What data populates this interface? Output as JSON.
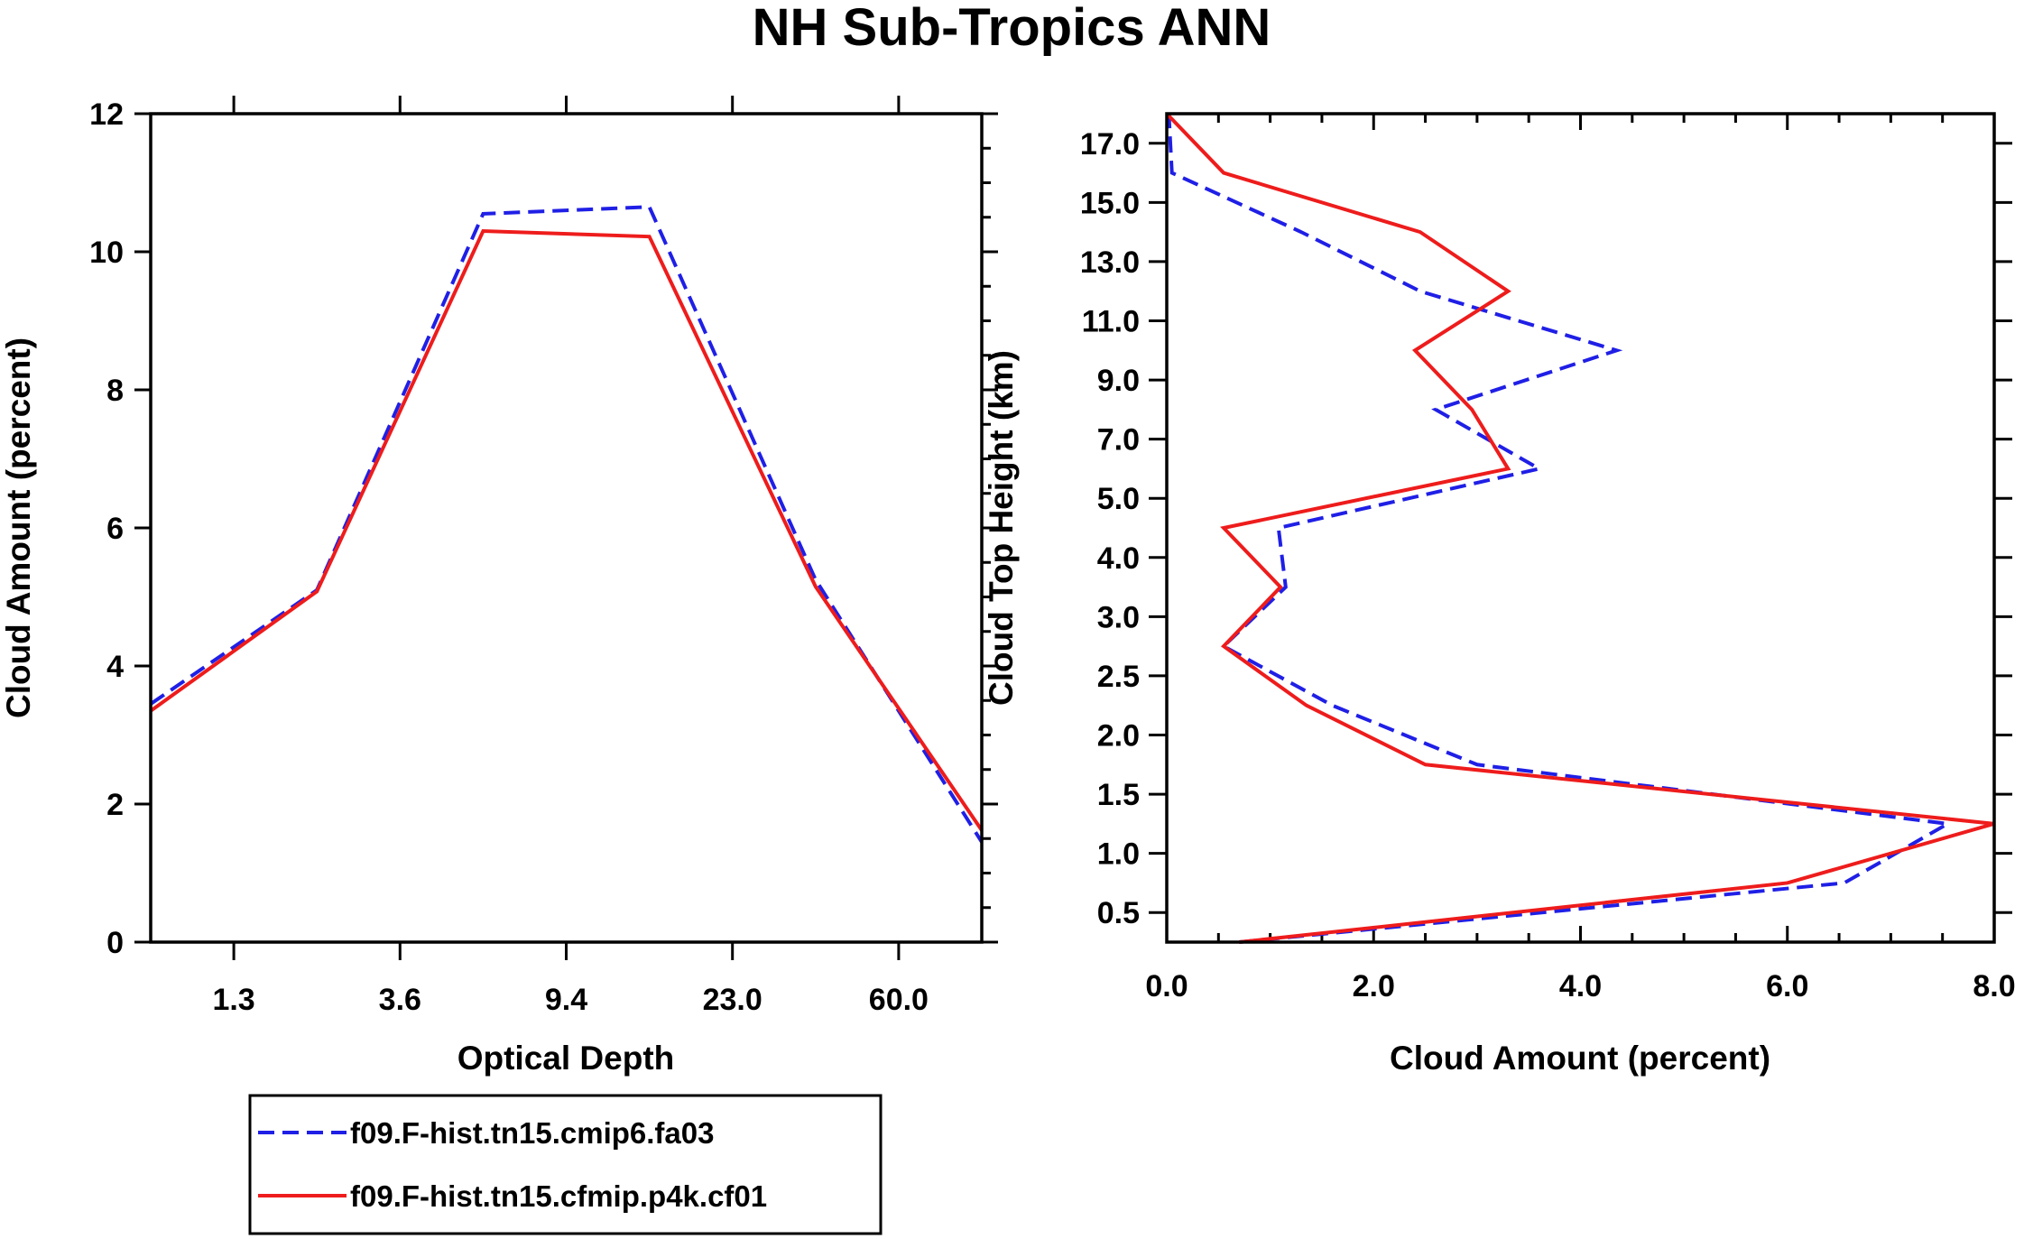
{
  "title": "NH Sub-Tropics ANN",
  "legend": {
    "entries": [
      {
        "label": "f09.F-hist.tn15.cmip6.fa03",
        "color": "#1f1fe6",
        "style": "dashed"
      },
      {
        "label": "f09.F-hist.tn15.cfmip.p4k.cf01",
        "color": "#ee1c1c",
        "style": "solid"
      }
    ]
  },
  "chart_data": [
    {
      "type": "line",
      "name": "optical-depth-panel",
      "xlabel": "Optical Depth",
      "ylabel": "Cloud Amount (percent)",
      "x_tick_labels": [
        "1.3",
        "3.6",
        "9.4",
        "23.0",
        "60.0"
      ],
      "x_tick_index": [
        0.5,
        1.5,
        2.5,
        3.5,
        4.5
      ],
      "xlim": [
        0,
        5
      ],
      "ylim": [
        0,
        12
      ],
      "y_ticks": [
        0,
        2,
        4,
        6,
        8,
        10,
        12
      ],
      "x": [
        0,
        1,
        2,
        3,
        4,
        5
      ],
      "series": [
        {
          "name": "f09.F-hist.tn15.cmip6.fa03",
          "color": "#1f1fe6",
          "dashed": true,
          "values": [
            3.45,
            5.1,
            10.55,
            10.65,
            5.25,
            1.45
          ]
        },
        {
          "name": "f09.F-hist.tn15.cfmip.p4k.cf01",
          "color": "#ee1c1c",
          "dashed": false,
          "values": [
            3.35,
            5.08,
            10.3,
            10.22,
            5.15,
            1.62
          ]
        }
      ]
    },
    {
      "type": "line",
      "name": "cloud-top-height-panel",
      "xlabel": "Cloud Amount (percent)",
      "ylabel": "Cloud Top Height (km)",
      "x_ticks": [
        0,
        2,
        4,
        6,
        8
      ],
      "x_tick_labels": [
        "0.0",
        "2.0",
        "4.0",
        "6.0",
        "8.0"
      ],
      "xlim": [
        0,
        8
      ],
      "y_tick_labels": [
        "0.5",
        "1.0",
        "1.5",
        "2.0",
        "2.5",
        "3.0",
        "4.0",
        "5.0",
        "7.0",
        "9.0",
        "11.0",
        "13.0",
        "15.0",
        "17.0"
      ],
      "y_tick_index": [
        0.5,
        1.0,
        1.5,
        2.0,
        2.5,
        3.0,
        3.5,
        4.0,
        4.5,
        5.0,
        5.5,
        6.0,
        6.5,
        7.0
      ],
      "ylim_index": [
        0.25,
        7.25
      ],
      "y_index": [
        0.25,
        0.75,
        1.25,
        1.75,
        2.25,
        2.75,
        3.25,
        3.75,
        4.25,
        4.75,
        5.25,
        5.75,
        6.25,
        6.75,
        7.25
      ],
      "series": [
        {
          "name": "f09.F-hist.tn15.cmip6.fa03",
          "color": "#1f1fe6",
          "dashed": true,
          "values": [
            0.7,
            6.55,
            7.55,
            3.0,
            1.6,
            0.55,
            1.15,
            1.08,
            3.6,
            2.6,
            4.35,
            2.45,
            1.3,
            0.05,
            0.02
          ]
        },
        {
          "name": "f09.F-hist.tn15.cfmip.p4k.cf01",
          "color": "#ee1c1c",
          "dashed": false,
          "values": [
            0.7,
            6.0,
            8.0,
            2.5,
            1.35,
            0.55,
            1.1,
            0.55,
            3.3,
            2.95,
            2.4,
            3.3,
            2.45,
            0.55,
            0.0
          ]
        }
      ]
    }
  ]
}
